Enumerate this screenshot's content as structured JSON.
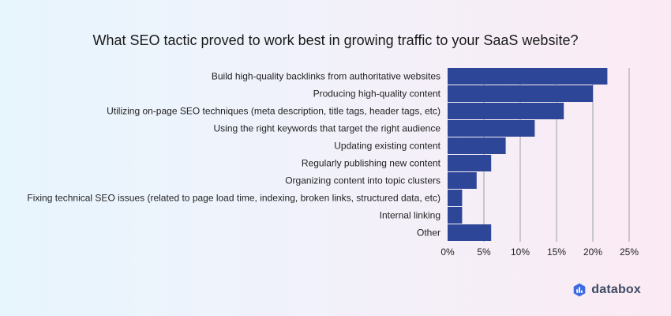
{
  "brand": {
    "name": "databox",
    "icon": "databox-logo-icon"
  },
  "chart_data": {
    "type": "bar",
    "orientation": "horizontal",
    "title": "What SEO tactic proved to work best in growing traffic to your SaaS website?",
    "xlabel": "",
    "ylabel": "",
    "categories": [
      "Build high-quality backlinks from authoritative websites",
      "Producing high-quality content",
      "Utilizing on-page SEO techniques (meta description, title tags, header tags, etc)",
      "Using the right keywords that target the right audience",
      "Updating existing content",
      "Regularly publishing new content",
      "Organizing content into topic clusters",
      "Fixing technical SEO issues (related to page load time, indexing, broken links, structured data, etc)",
      "Internal linking",
      "Other"
    ],
    "values": [
      22,
      20,
      16,
      12,
      8,
      6,
      4,
      2,
      2,
      6
    ],
    "xlim": [
      0,
      25
    ],
    "ticks": [
      0,
      5,
      10,
      15,
      20,
      25
    ],
    "tick_suffix": "%",
    "grid": true,
    "bar_color": "#2e4697",
    "grid_color": "#b9b9c0"
  }
}
